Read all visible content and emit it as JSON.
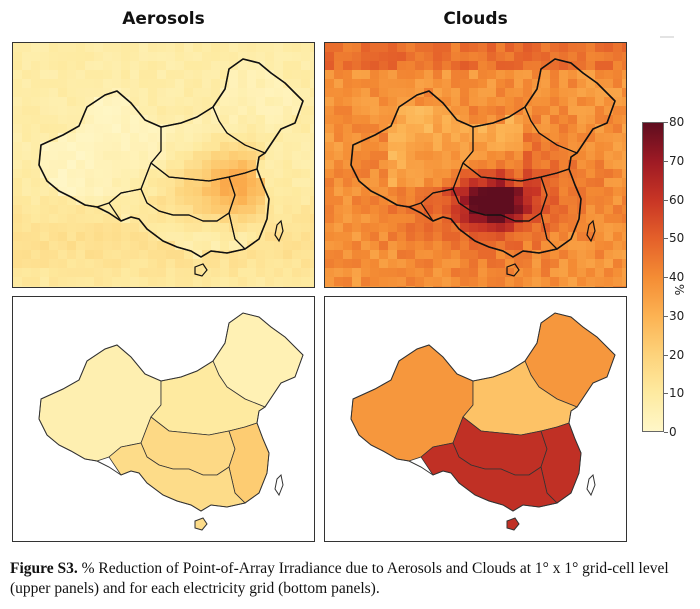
{
  "titles": {
    "left": "Aerosols",
    "right": "Clouds"
  },
  "colorbar": {
    "unit": "%",
    "min": 0,
    "max": 80,
    "ticks": [
      "80",
      "70",
      "60",
      "50",
      "40",
      "30",
      "20",
      "10",
      "0"
    ],
    "colors": [
      "#fff7c8",
      "#feeaa0",
      "#fdd27a",
      "#fcb252",
      "#f48c34",
      "#e4602a",
      "#c83525",
      "#9e1a24",
      "#5f0d1f"
    ]
  },
  "panels": {
    "aerosols_grid": {
      "level": "grid-cell",
      "base_pct": 5,
      "hotspot_pct": 28
    },
    "clouds_grid": {
      "level": "grid-cell",
      "base_pct": 45,
      "hotspot_pct": 80
    },
    "aerosols_region": {
      "level": "electricity-grid",
      "regions_pct": {
        "northwest": 6,
        "northeast": 5,
        "north": 10,
        "central": 17,
        "east": 22,
        "south": 16
      }
    },
    "clouds_region": {
      "level": "electricity-grid",
      "regions_pct": {
        "northwest": 37,
        "northeast": 37,
        "north": 25,
        "central": 62,
        "east": 62,
        "south": 62
      }
    }
  },
  "caption": {
    "label": "Figure S3.",
    "text": "% Reduction of Point-of-Array Irradiance due to Aerosols and Clouds at 1° x 1° grid-cell level (upper panels) and for each electricity grid (bottom panels)."
  }
}
